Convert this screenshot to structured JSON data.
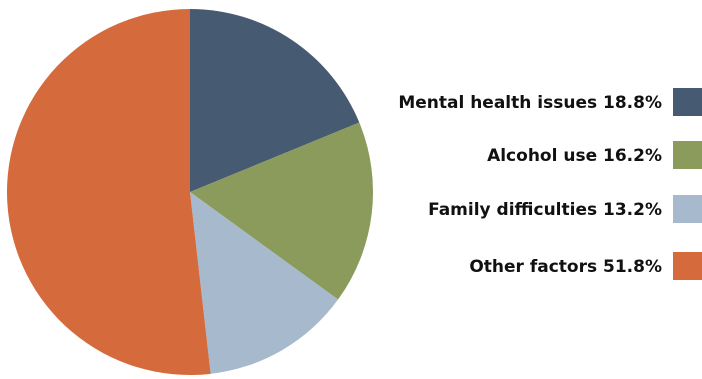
{
  "chart_data": {
    "type": "pie",
    "slices": [
      {
        "label": "Mental health issues 18.8%",
        "value": 18.8,
        "color": "#465a72"
      },
      {
        "label": "Alcohol use 16.2%",
        "value": 16.2,
        "color": "#8a9b5c"
      },
      {
        "label": "Family difficulties 13.2%",
        "value": 13.2,
        "color": "#a7b9cc"
      },
      {
        "label": "Other factors 51.8%",
        "value": 51.8,
        "color": "#d56b3c"
      }
    ],
    "legend_position": "right"
  }
}
